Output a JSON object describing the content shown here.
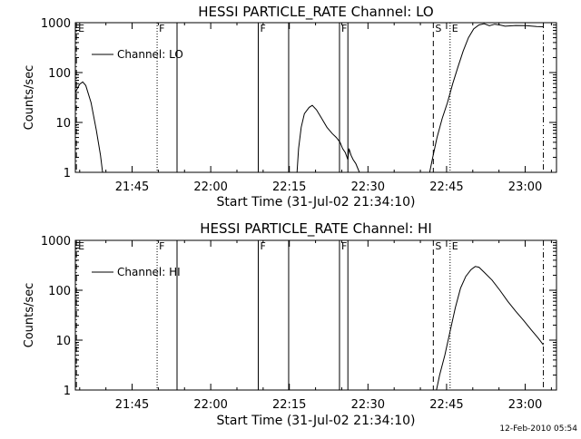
{
  "footer_timestamp": "12-Feb-2010 05:54",
  "chart_data": [
    {
      "type": "line",
      "title": "HESSI PARTICLE_RATE Channel: LO",
      "xlabel": "Start Time (31-Jul-02 21:34:10)",
      "ylabel": "Counts/sec",
      "yscale": "log",
      "ylim": [
        1,
        1000
      ],
      "xlim_minutes": [
        0,
        91.8
      ],
      "xtick_labels": [
        "21:45",
        "22:00",
        "22:15",
        "22:30",
        "22:45",
        "23:00"
      ],
      "xtick_minutes": [
        10.83,
        25.83,
        40.83,
        55.83,
        70.83,
        85.83
      ],
      "ytick_labels": [
        "1",
        "10",
        "100",
        "1000"
      ],
      "ytick_values": [
        1,
        10,
        100,
        1000
      ],
      "legend": {
        "label": "Channel: LO",
        "location": "top-left"
      },
      "markers": [
        {
          "label": "E",
          "minute": 0.2,
          "style": "dashdot"
        },
        {
          "label": "F",
          "minute": 15.6,
          "style": "dotted"
        },
        {
          "label": "",
          "minute": 19.4,
          "style": "solid"
        },
        {
          "label": "F",
          "minute": 34.9,
          "style": "solid"
        },
        {
          "label": "",
          "minute": 40.7,
          "style": "solid"
        },
        {
          "label": "F",
          "minute": 50.4,
          "style": "solid"
        },
        {
          "label": "",
          "minute": 52.0,
          "style": "solid"
        },
        {
          "label": "S",
          "minute": 68.3,
          "style": "dashed"
        },
        {
          "label": "E",
          "minute": 71.5,
          "style": "dotted"
        },
        {
          "label": "",
          "minute": 89.3,
          "style": "dashdot"
        }
      ],
      "series": [
        {
          "segments": [
            [
              [
                0,
                40
              ],
              [
                0.8,
                58
              ],
              [
                1.4,
                65
              ],
              [
                2.0,
                55
              ],
              [
                3.0,
                25
              ],
              [
                4.0,
                7
              ],
              [
                4.8,
                2.2
              ],
              [
                5.2,
                1
              ]
            ],
            [
              [
                42.3,
                1
              ],
              [
                42.6,
                3
              ],
              [
                43.1,
                8
              ],
              [
                43.7,
                15
              ],
              [
                44.6,
                20
              ],
              [
                45.2,
                22
              ],
              [
                46.0,
                18
              ],
              [
                47.0,
                12
              ],
              [
                48.0,
                8
              ],
              [
                49.0,
                6
              ],
              [
                49.8,
                5
              ],
              [
                50.5,
                4
              ],
              [
                51.0,
                3
              ],
              [
                51.5,
                2.5
              ],
              [
                52.0,
                1.8
              ],
              [
                52.2,
                3
              ],
              [
                52.6,
                2.2
              ],
              [
                53.0,
                1.8
              ],
              [
                53.5,
                1.5
              ],
              [
                54.2,
                1
              ]
            ],
            [
              [
                67.6,
                1
              ],
              [
                68.2,
                2
              ],
              [
                69.0,
                5
              ],
              [
                70.0,
                12
              ],
              [
                71.0,
                25
              ],
              [
                72.0,
                60
              ],
              [
                73.0,
                130
              ],
              [
                74.0,
                270
              ],
              [
                75.0,
                500
              ],
              [
                76.0,
                750
              ],
              [
                77.0,
                900
              ],
              [
                78.0,
                950
              ],
              [
                79.0,
                870
              ],
              [
                80.0,
                930
              ],
              [
                81.0,
                900
              ],
              [
                82.0,
                850
              ],
              [
                84.0,
                880
              ],
              [
                86.0,
                870
              ],
              [
                88.0,
                840
              ],
              [
                89.3,
                830
              ]
            ]
          ]
        }
      ]
    },
    {
      "type": "line",
      "title": "HESSI PARTICLE_RATE Channel: HI",
      "xlabel": "Start Time (31-Jul-02 21:34:10)",
      "ylabel": "Counts/sec",
      "yscale": "log",
      "ylim": [
        1,
        1000
      ],
      "xlim_minutes": [
        0,
        91.8
      ],
      "xtick_labels": [
        "21:45",
        "22:00",
        "22:15",
        "22:30",
        "22:45",
        "23:00"
      ],
      "xtick_minutes": [
        10.83,
        25.83,
        40.83,
        55.83,
        70.83,
        85.83
      ],
      "ytick_labels": [
        "1",
        "10",
        "100",
        "1000"
      ],
      "ytick_values": [
        1,
        10,
        100,
        1000
      ],
      "legend": {
        "label": "Channel: HI",
        "location": "top-left"
      },
      "markers": [
        {
          "label": "E",
          "minute": 0.2,
          "style": "dashdot"
        },
        {
          "label": "F",
          "minute": 15.6,
          "style": "dotted"
        },
        {
          "label": "",
          "minute": 19.4,
          "style": "solid"
        },
        {
          "label": "F",
          "minute": 34.9,
          "style": "solid"
        },
        {
          "label": "",
          "minute": 40.7,
          "style": "solid"
        },
        {
          "label": "F",
          "minute": 50.4,
          "style": "solid"
        },
        {
          "label": "",
          "minute": 52.0,
          "style": "solid"
        },
        {
          "label": "S",
          "minute": 68.3,
          "style": "dashed"
        },
        {
          "label": "E",
          "minute": 71.5,
          "style": "dotted"
        },
        {
          "label": "",
          "minute": 89.3,
          "style": "dashdot"
        }
      ],
      "series": [
        {
          "segments": [
            [
              [
                68.9,
                1
              ],
              [
                69.5,
                2
              ],
              [
                70.5,
                5
              ],
              [
                71.5,
                15
              ],
              [
                72.5,
                45
              ],
              [
                73.5,
                110
              ],
              [
                74.5,
                190
              ],
              [
                75.5,
                260
              ],
              [
                76.3,
                300
              ],
              [
                77.0,
                290
              ],
              [
                78.0,
                230
              ],
              [
                79.5,
                160
              ],
              [
                81.0,
                100
              ],
              [
                82.5,
                60
              ],
              [
                84.0,
                38
              ],
              [
                85.5,
                25
              ],
              [
                87.0,
                16
              ],
              [
                88.3,
                11
              ],
              [
                89.3,
                8
              ]
            ]
          ]
        }
      ]
    }
  ]
}
